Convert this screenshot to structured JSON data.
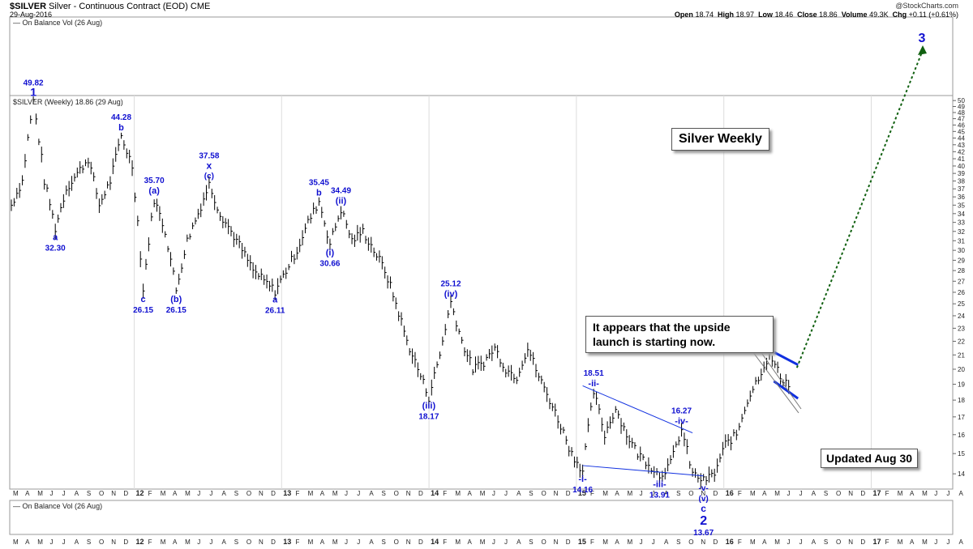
{
  "header": {
    "symbol": "$SILVER",
    "description": "Silver - Continuous Contract (EOD) CME",
    "date": "29-Aug-2016",
    "brand": "@StockCharts.com",
    "open_label": "Open",
    "open": "18.74",
    "high_label": "High",
    "high": "18.97",
    "low_label": "Low",
    "low": "18.46",
    "close_label": "Close",
    "close": "18.86",
    "volume_label": "Volume",
    "volume": "49.3K",
    "chg_label": "Chg",
    "chg": "+0.11 (+0.61%)"
  },
  "panels": {
    "obv_top_label": "— On Balance Vol (26 Aug)",
    "price_label": "$SILVER (Weekly) 18.86 (29 Aug)",
    "obv_bottom_label": "— On Balance Vol (26 Aug)"
  },
  "annotations": {
    "title_box": "Silver Weekly",
    "callout_line1": "It appears that the upside",
    "callout_line2": "launch is starting now.",
    "updated_box": "Updated Aug 30"
  },
  "colors": {
    "wave_label": "#1010d0",
    "price_bar": "#000000",
    "trendline": "#1030e0",
    "projection": "#106010"
  },
  "chart_data": {
    "type": "line",
    "yaxis": {
      "ticks": [
        14,
        15,
        16,
        17,
        18,
        19,
        20,
        21,
        22,
        23,
        24,
        25,
        26,
        27,
        28,
        29,
        30,
        31,
        32,
        33,
        34,
        35,
        36,
        37,
        38,
        39,
        40,
        41,
        42,
        43,
        44,
        45,
        46,
        47,
        48,
        49,
        50
      ],
      "ylim": [
        13.4,
        50
      ],
      "side": "right"
    },
    "xaxis": {
      "labels": [
        "M",
        "A",
        "M",
        "J",
        "J",
        "A",
        "S",
        "O",
        "N",
        "D",
        "12",
        "F",
        "M",
        "A",
        "M",
        "J",
        "J",
        "A",
        "S",
        "O",
        "N",
        "D",
        "13",
        "F",
        "M",
        "A",
        "M",
        "J",
        "J",
        "A",
        "S",
        "O",
        "N",
        "D",
        "14",
        "F",
        "M",
        "A",
        "M",
        "J",
        "J",
        "A",
        "S",
        "O",
        "N",
        "D",
        "15",
        "F",
        "M",
        "A",
        "M",
        "J",
        "J",
        "A",
        "S",
        "O",
        "N",
        "D",
        "16",
        "F",
        "M",
        "A",
        "M",
        "J",
        "J",
        "A",
        "S",
        "O",
        "N",
        "D",
        "17",
        "F",
        "M",
        "A",
        "M",
        "J",
        "J",
        "A"
      ]
    },
    "price_path": [
      [
        0,
        35
      ],
      [
        1,
        38
      ],
      [
        2,
        49.82
      ],
      [
        3,
        38
      ],
      [
        4,
        32.3
      ],
      [
        5,
        37
      ],
      [
        6,
        39
      ],
      [
        7,
        41
      ],
      [
        8,
        35
      ],
      [
        9,
        38
      ],
      [
        10,
        44.28
      ],
      [
        11,
        40
      ],
      [
        12,
        26.15
      ],
      [
        13,
        35.7
      ],
      [
        14,
        32
      ],
      [
        15,
        26.15
      ],
      [
        16,
        31
      ],
      [
        17,
        34
      ],
      [
        18,
        37.58
      ],
      [
        19,
        34
      ],
      [
        20,
        32
      ],
      [
        21,
        30
      ],
      [
        22,
        28
      ],
      [
        23,
        27
      ],
      [
        24,
        26.11
      ],
      [
        25,
        28
      ],
      [
        26,
        30
      ],
      [
        27,
        33
      ],
      [
        28,
        35.45
      ],
      [
        29,
        30.66
      ],
      [
        30,
        34.49
      ],
      [
        31,
        31
      ],
      [
        32,
        32
      ],
      [
        33,
        30
      ],
      [
        34,
        28
      ],
      [
        35,
        25
      ],
      [
        36,
        22
      ],
      [
        37,
        20
      ],
      [
        38,
        18.17
      ],
      [
        39,
        21
      ],
      [
        40,
        25.12
      ],
      [
        41,
        22
      ],
      [
        42,
        20
      ],
      [
        43,
        20.5
      ],
      [
        44,
        21.5
      ],
      [
        45,
        20
      ],
      [
        46,
        19.5
      ],
      [
        47,
        21.5
      ],
      [
        48,
        19.5
      ],
      [
        49,
        18
      ],
      [
        50,
        16.5
      ],
      [
        51,
        15
      ],
      [
        52,
        14.16
      ],
      [
        53,
        18.51
      ],
      [
        54,
        16
      ],
      [
        55,
        17.5
      ],
      [
        56,
        16
      ],
      [
        57,
        15
      ],
      [
        58,
        14.5
      ],
      [
        59,
        13.91
      ],
      [
        60,
        14.5
      ],
      [
        61,
        16.27
      ],
      [
        62,
        14
      ],
      [
        63,
        13.67
      ],
      [
        64,
        14
      ],
      [
        65,
        15.5
      ],
      [
        66,
        16
      ],
      [
        67,
        18
      ],
      [
        68,
        19.5
      ],
      [
        69,
        21
      ],
      [
        70,
        19.5
      ],
      [
        71,
        18.86
      ]
    ],
    "wave_labels": [
      {
        "t": 2,
        "y": 49.82,
        "price": "49.82",
        "wave": "1",
        "pos": "above"
      },
      {
        "t": 4,
        "y": 32.3,
        "price": "32.30",
        "wave": "a",
        "pos": "below"
      },
      {
        "t": 10,
        "y": 44.28,
        "price": "44.28",
        "wave": "b",
        "pos": "above"
      },
      {
        "t": 12,
        "y": 26.15,
        "price": "26.15",
        "wave": "c",
        "pos": "below"
      },
      {
        "t": 13,
        "y": 35.7,
        "price": "35.70",
        "wave": "(a)",
        "pos": "above"
      },
      {
        "t": 15,
        "y": 26.15,
        "price": "26.15",
        "wave": "(b)",
        "pos": "below"
      },
      {
        "t": 18,
        "y": 37.58,
        "price": "37.58",
        "wave": "x",
        "sub": "(c)",
        "pos": "above"
      },
      {
        "t": 24,
        "y": 26.11,
        "price": "26.11",
        "wave": "a",
        "pos": "below"
      },
      {
        "t": 28,
        "y": 35.45,
        "price": "35.45",
        "wave": "b",
        "pos": "above"
      },
      {
        "t": 29,
        "y": 30.66,
        "price": "30.66",
        "wave": "(i)",
        "pos": "below"
      },
      {
        "t": 30,
        "y": 34.49,
        "price": "34.49",
        "wave": "(ii)",
        "pos": "above"
      },
      {
        "t": 38,
        "y": 18.17,
        "price": "18.17",
        "wave": "(iii)",
        "pos": "below"
      },
      {
        "t": 40,
        "y": 25.12,
        "price": "25.12",
        "wave": "(iv)",
        "pos": "above"
      },
      {
        "t": 52,
        "y": 14.16,
        "price": "14.16",
        "wave": "-i-",
        "pos": "below"
      },
      {
        "t": 53,
        "y": 18.51,
        "price": "18.51",
        "wave": "-ii-",
        "pos": "above"
      },
      {
        "t": 59,
        "y": 13.91,
        "price": "13.91",
        "wave": "-iii-",
        "pos": "below"
      },
      {
        "t": 61,
        "y": 16.27,
        "price": "16.27",
        "wave": "-iv-",
        "pos": "above"
      },
      {
        "t": 63,
        "y": 13.67,
        "price": "13.67",
        "wave": "-v-",
        "sub": "(v)",
        "sub2": "c",
        "big": "2",
        "pos": "below"
      }
    ],
    "projection": {
      "from": [
        71.5,
        20.1
      ],
      "wave": "3"
    }
  }
}
